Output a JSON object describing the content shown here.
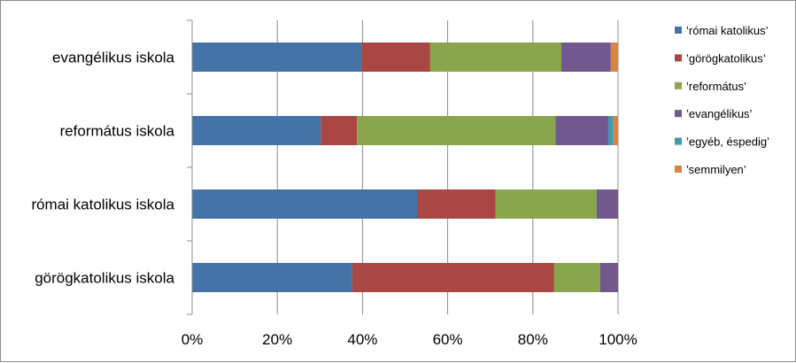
{
  "chart_data": {
    "type": "bar",
    "orientation": "horizontal",
    "stacked": "percent",
    "categories": [
      "evangélikus iskola",
      "református iskola",
      "római katolikus iskola",
      "görögkatolikus iskola"
    ],
    "series": [
      {
        "name": "’római katolikus’",
        "color": "#4572A7",
        "values": [
          39.8,
          30.2,
          52.8,
          37.6
        ]
      },
      {
        "name": "’görögkatolikus’",
        "color": "#AA4643",
        "values": [
          16.1,
          8.5,
          18.4,
          47.4
        ]
      },
      {
        "name": "’református’",
        "color": "#89A54E",
        "values": [
          30.8,
          46.6,
          23.8,
          10.8
        ]
      },
      {
        "name": "’evangélikus’",
        "color": "#71588F",
        "values": [
          11.6,
          12.4,
          5.0,
          4.2
        ]
      },
      {
        "name": "’egyéb, éspedig’",
        "color": "#4198AF",
        "values": [
          0.0,
          1.2,
          0.0,
          0.0
        ]
      },
      {
        "name": "’semmilyen’",
        "color": "#DB843D",
        "values": [
          1.7,
          1.1,
          0.0,
          0.0
        ]
      }
    ],
    "x_ticks": [
      "0%",
      "20%",
      "40%",
      "60%",
      "80%",
      "100%"
    ],
    "xlim": [
      0,
      100
    ],
    "grid": "vertical",
    "legend": "right"
  }
}
